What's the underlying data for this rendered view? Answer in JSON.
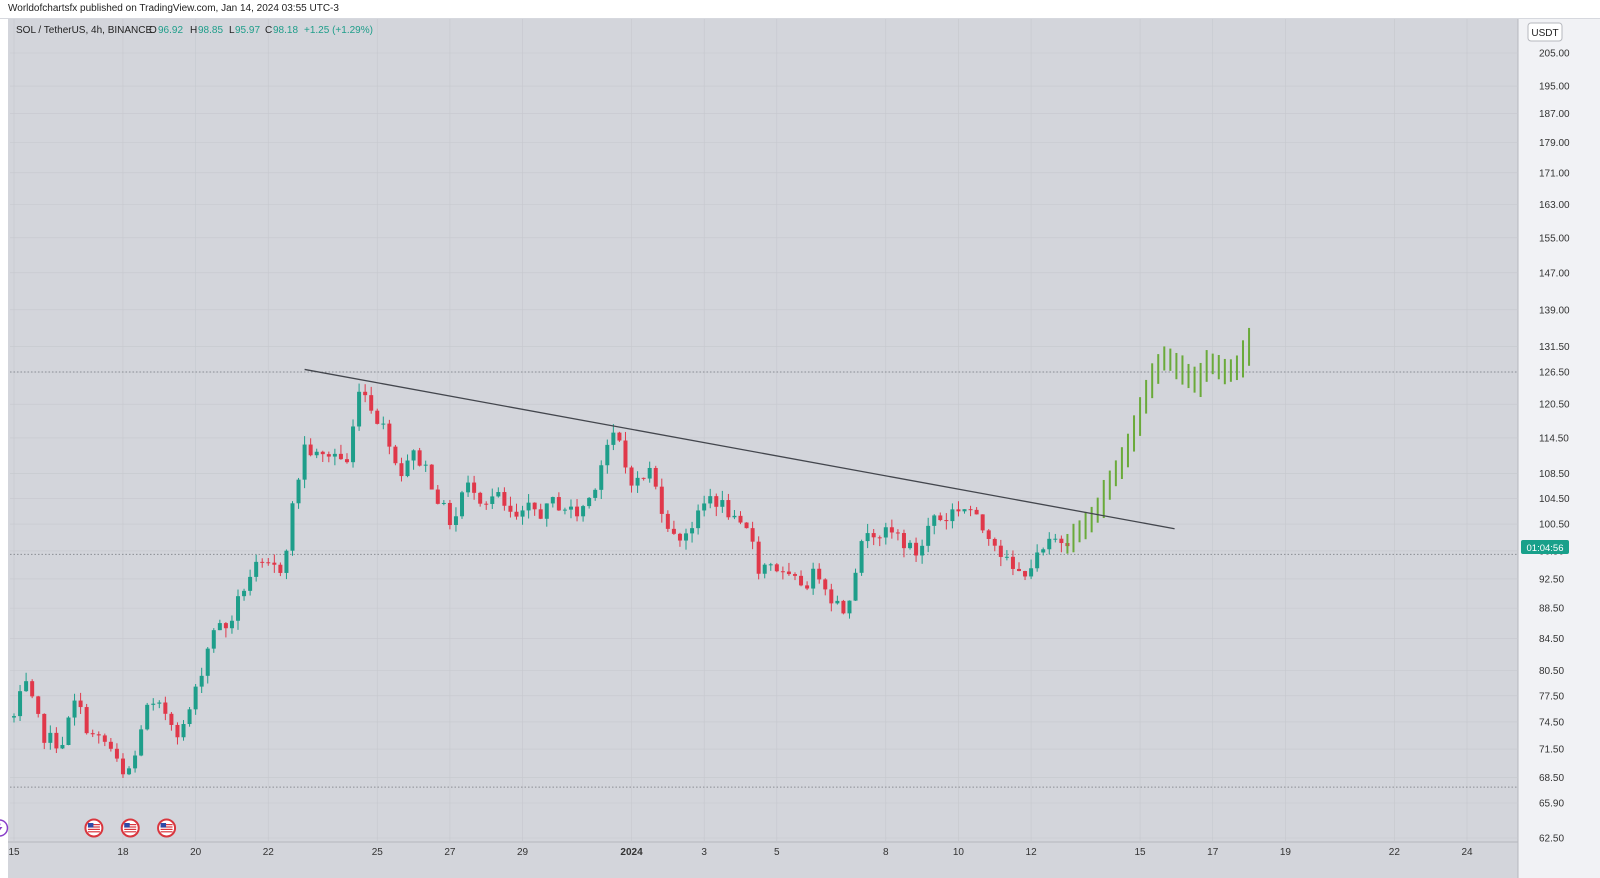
{
  "header": {
    "publisher_line": "Worldofchartsfx published on TradingView.com, Jan 14, 2024 03:55 UTC-3"
  },
  "legend": {
    "symbol": "SOL / TetherUS, 4h, BINANCE",
    "open_label": "O",
    "open": "96.92",
    "high_label": "H",
    "high": "98.85",
    "low_label": "L",
    "low": "95.97",
    "close_label": "C",
    "close": "98.18",
    "change": "+1.25 (+1.29%)"
  },
  "price_axis": {
    "currency_label": "USDT",
    "countdown": "01:04:56"
  },
  "colors": {
    "background": "#d3d5db",
    "up": "#1e9e8a",
    "down": "#e0384a",
    "projection": "#6aaa3a",
    "trendline": "#43464d",
    "accent_tag": "#18a08a",
    "grid": "#c6c8ce"
  },
  "events": [
    {
      "icon": "lightning-icon",
      "x": 14.6
    },
    {
      "icon": "us-flag-icon",
      "x": 17.2
    },
    {
      "icon": "us-flag-icon",
      "x": 18.2
    },
    {
      "icon": "us-flag-icon",
      "x": 19.2
    }
  ],
  "chart_data": {
    "type": "candlestick",
    "symbol": "SOL / TetherUS",
    "interval": "4h",
    "exchange": "BINANCE",
    "x_axis": "day of month (Dec 2023 → Jan 2024)",
    "y_scale": "log",
    "ylim": [
      62.5,
      210
    ],
    "xlim": [
      15.0,
      25.4
    ],
    "x_ticks": [
      {
        "x": 15.0,
        "label": "15"
      },
      {
        "x": 18.0,
        "label": "18"
      },
      {
        "x": 20.0,
        "label": "20"
      },
      {
        "x": 22.0,
        "label": "22"
      },
      {
        "x": 25.0,
        "label": "25"
      },
      {
        "x": 27.0,
        "label": "27"
      },
      {
        "x": 29.0,
        "label": "29"
      },
      {
        "x": 32.0,
        "label": "2024"
      },
      {
        "x": 34.0,
        "label": "3"
      },
      {
        "x": 36.0,
        "label": "5"
      },
      {
        "x": 39.0,
        "label": "8"
      },
      {
        "x": 41.0,
        "label": "10"
      },
      {
        "x": 43.0,
        "label": "12"
      },
      {
        "x": 46.0,
        "label": "15"
      },
      {
        "x": 48.0,
        "label": "17"
      },
      {
        "x": 50.0,
        "label": "19"
      },
      {
        "x": 53.0,
        "label": "22"
      },
      {
        "x": 55.0,
        "label": "24"
      }
    ],
    "y_ticks": [
      "205.00",
      "195.00",
      "187.00",
      "179.00",
      "171.00",
      "163.00",
      "155.00",
      "147.00",
      "139.00",
      "131.50",
      "126.50",
      "120.50",
      "114.50",
      "108.50",
      "104.50",
      "100.50",
      "96.50",
      "92.50",
      "88.50",
      "84.50",
      "80.50",
      "77.50",
      "74.50",
      "71.50",
      "68.50",
      "65.90",
      "62.50"
    ],
    "levels": [
      126.5,
      96.0,
      67.5
    ],
    "trendline": {
      "from": {
        "x": 23.0,
        "y": 127.0
      },
      "to": {
        "x": 46.95,
        "y": 99.8
      }
    },
    "waypoints_series": {
      "name": "SOL/USDT 4h",
      "points": [
        [
          15.0,
          75
        ],
        [
          15.3,
          79
        ],
        [
          15.8,
          73
        ],
        [
          16.3,
          72
        ],
        [
          16.7,
          77
        ],
        [
          17.1,
          73
        ],
        [
          17.6,
          72
        ],
        [
          18.0,
          68.5
        ],
        [
          18.3,
          70
        ],
        [
          18.6,
          76
        ],
        [
          19.1,
          76
        ],
        [
          19.6,
          73
        ],
        [
          20.0,
          78
        ],
        [
          20.5,
          86
        ],
        [
          20.9,
          86
        ],
        [
          21.3,
          91
        ],
        [
          21.6,
          94
        ],
        [
          22.0,
          94
        ],
        [
          22.4,
          94
        ],
        [
          22.6,
          101
        ],
        [
          23.0,
          113
        ],
        [
          23.4,
          111
        ],
        [
          23.8,
          112
        ],
        [
          24.2,
          110
        ],
        [
          24.5,
          124
        ],
        [
          24.7,
          122
        ],
        [
          25.0,
          118
        ],
        [
          25.3,
          115
        ],
        [
          25.6,
          108
        ],
        [
          25.9,
          112
        ],
        [
          26.3,
          110
        ],
        [
          26.7,
          104
        ],
        [
          27.1,
          100
        ],
        [
          27.3,
          105
        ],
        [
          27.6,
          107
        ],
        [
          27.9,
          104
        ],
        [
          28.3,
          105
        ],
        [
          28.6,
          102
        ],
        [
          28.9,
          101
        ],
        [
          29.2,
          103
        ],
        [
          29.6,
          102
        ],
        [
          29.8,
          104
        ],
        [
          30.2,
          103
        ],
        [
          30.5,
          102
        ],
        [
          30.9,
          105
        ],
        [
          31.3,
          113
        ],
        [
          31.6,
          115
        ],
        [
          31.9,
          108
        ],
        [
          32.2,
          107
        ],
        [
          32.5,
          109
        ],
        [
          32.9,
          102
        ],
        [
          33.2,
          98
        ],
        [
          33.6,
          100
        ],
        [
          33.9,
          102
        ],
        [
          34.1,
          105
        ],
        [
          34.6,
          103
        ],
        [
          34.9,
          100
        ],
        [
          35.3,
          99
        ],
        [
          35.5,
          94
        ],
        [
          35.9,
          95
        ],
        [
          36.1,
          93
        ],
        [
          36.5,
          92
        ],
        [
          36.9,
          92
        ],
        [
          37.1,
          94
        ],
        [
          37.5,
          90
        ],
        [
          37.9,
          88
        ],
        [
          38.1,
          93
        ],
        [
          38.5,
          100
        ],
        [
          38.9,
          99
        ],
        [
          39.3,
          99
        ],
        [
          39.6,
          97
        ],
        [
          39.9,
          96
        ],
        [
          40.3,
          102
        ],
        [
          40.6,
          101
        ],
        [
          40.9,
          103
        ],
        [
          41.3,
          103
        ],
        [
          41.6,
          100
        ],
        [
          41.9,
          99
        ],
        [
          42.3,
          95
        ],
        [
          42.6,
          93
        ],
        [
          42.9,
          94
        ],
        [
          43.1,
          95
        ],
        [
          43.6,
          98
        ],
        [
          44.0,
          98.2
        ]
      ]
    },
    "projection": {
      "name": "projection",
      "points": [
        [
          44.0,
          98
        ],
        [
          44.4,
          100
        ],
        [
          44.8,
          103
        ],
        [
          45.2,
          108
        ],
        [
          45.6,
          112
        ],
        [
          45.9,
          118
        ],
        [
          46.2,
          124
        ],
        [
          46.6,
          130
        ],
        [
          46.9,
          128
        ],
        [
          47.2,
          126
        ],
        [
          47.5,
          124
        ],
        [
          47.8,
          129
        ],
        [
          48.1,
          127
        ],
        [
          48.4,
          126
        ],
        [
          48.7,
          128
        ],
        [
          49.0,
          133
        ]
      ]
    }
  }
}
